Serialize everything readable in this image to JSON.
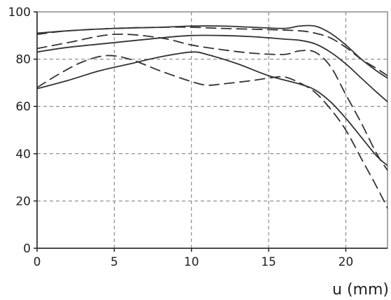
{
  "chart_data": {
    "type": "line",
    "title": "",
    "xlabel": "u (mm)",
    "ylabel": "",
    "xlim": [
      0,
      22.7
    ],
    "ylim": [
      0,
      100
    ],
    "x_ticks": [
      0,
      5,
      10,
      15,
      20
    ],
    "y_ticks": [
      0,
      20,
      40,
      60,
      80,
      100
    ],
    "grid": true,
    "grid_style": "dashed",
    "legend": "none",
    "series": [
      {
        "style": "solid",
        "color": "#333333",
        "x": [
          0,
          2,
          5,
          8,
          10,
          12,
          14,
          16,
          17,
          18,
          19,
          20,
          21,
          22,
          22.7
        ],
        "y": [
          91,
          92,
          93,
          93.5,
          94,
          94,
          93.5,
          93,
          94,
          94,
          91,
          86,
          80,
          75,
          72
        ]
      },
      {
        "style": "dashed",
        "color": "#333333",
        "x": [
          0,
          2,
          5,
          8,
          10,
          12,
          15,
          17,
          18,
          19,
          20,
          21,
          22,
          22.7
        ],
        "y": [
          90.5,
          92,
          93,
          93.5,
          93.5,
          93,
          92.5,
          92,
          91,
          89,
          85,
          80,
          76,
          73
        ]
      },
      {
        "style": "solid",
        "color": "#333333",
        "x": [
          0,
          2,
          5,
          8,
          10,
          12,
          14,
          16,
          17,
          18,
          19,
          20,
          21,
          22,
          22.7
        ],
        "y": [
          83,
          85,
          87,
          89,
          90,
          90,
          89.5,
          88.5,
          88,
          86.5,
          83,
          78,
          72,
          66,
          62
        ]
      },
      {
        "style": "dashed",
        "color": "#333333",
        "x": [
          0,
          2,
          5,
          8,
          10,
          12,
          14,
          16,
          17,
          18,
          19,
          20,
          21,
          22,
          22.7
        ],
        "y": [
          84.5,
          87,
          90.5,
          89,
          86,
          84,
          82.5,
          82,
          83.5,
          83,
          77,
          65,
          53,
          40,
          33
        ]
      },
      {
        "style": "solid",
        "color": "#333333",
        "x": [
          0,
          2,
          4,
          6,
          8,
          10,
          11,
          13,
          15,
          17,
          18,
          19,
          20,
          21,
          22,
          22.7
        ],
        "y": [
          67.5,
          71,
          75,
          78,
          81,
          83,
          82,
          78,
          73,
          69.5,
          67,
          62,
          55,
          47,
          39,
          35
        ]
      },
      {
        "style": "dashed",
        "color": "#333333",
        "x": [
          0,
          1.5,
          3,
          4.5,
          6,
          8,
          10,
          11,
          12,
          14,
          15,
          16,
          17,
          18,
          19,
          20,
          21,
          22,
          22.7
        ],
        "y": [
          68,
          74,
          79,
          81.5,
          80,
          75,
          70.5,
          69,
          69.5,
          71,
          72,
          72.5,
          70,
          66,
          59,
          50,
          38,
          26,
          17
        ]
      }
    ]
  }
}
